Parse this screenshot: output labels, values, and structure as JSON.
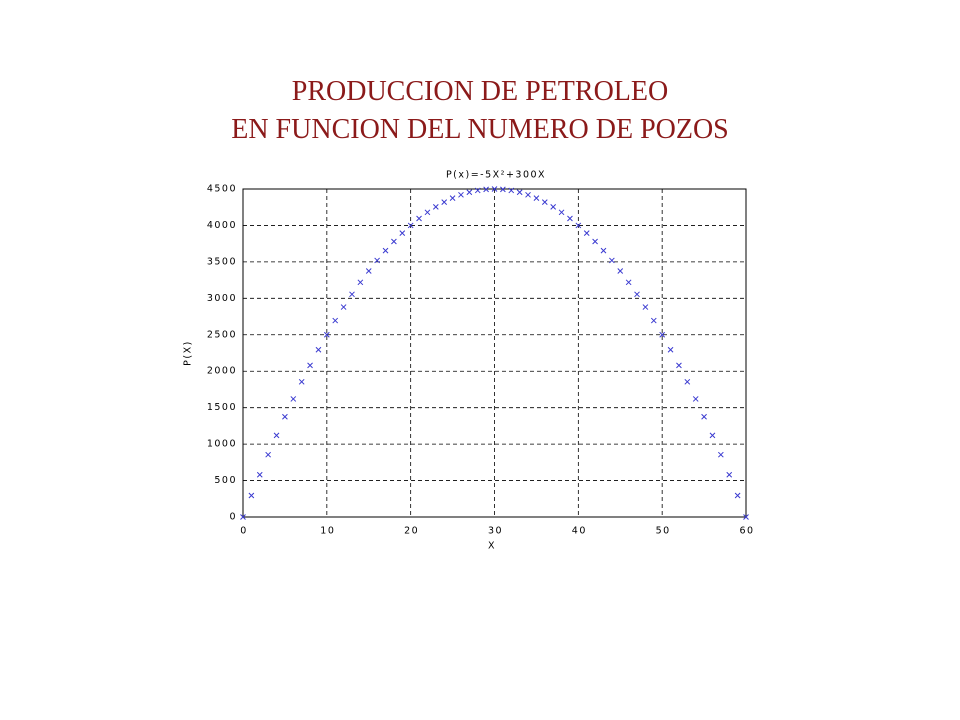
{
  "heading": [
    "PRODUCCION DE PETROLEO",
    "EN FUNCION DEL NUMERO DE POZOS"
  ],
  "chart_data": {
    "type": "scatter",
    "title": "P(x)=-5X²+300X",
    "xlabel": "X",
    "ylabel": "P(X)",
    "marker": "x",
    "color": "#3a3ad0",
    "grid": true,
    "xlim": [
      0,
      60
    ],
    "xticks": [
      0,
      10,
      20,
      30,
      40,
      50,
      60
    ],
    "ylim": [
      0,
      4500
    ],
    "yticks": [
      0,
      500,
      1000,
      1500,
      2000,
      2500,
      3000,
      3500,
      4000,
      4500
    ],
    "x": [
      0,
      1,
      2,
      3,
      4,
      5,
      6,
      7,
      8,
      9,
      10,
      11,
      12,
      13,
      14,
      15,
      16,
      17,
      18,
      19,
      20,
      21,
      22,
      23,
      24,
      25,
      26,
      27,
      28,
      29,
      30,
      31,
      32,
      33,
      34,
      35,
      36,
      37,
      38,
      39,
      40,
      41,
      42,
      43,
      44,
      45,
      46,
      47,
      48,
      49,
      50,
      51,
      52,
      53,
      54,
      55,
      56,
      57,
      58,
      59,
      60
    ],
    "values": [
      0,
      295,
      580,
      855,
      1120,
      1375,
      1620,
      1855,
      2080,
      2295,
      2500,
      2695,
      2880,
      3055,
      3220,
      3375,
      3520,
      3655,
      3780,
      3895,
      4000,
      4095,
      4180,
      4255,
      4320,
      4375,
      4420,
      4455,
      4480,
      4495,
      4500,
      4495,
      4480,
      4455,
      4420,
      4375,
      4320,
      4255,
      4180,
      4095,
      4000,
      3895,
      3780,
      3655,
      3520,
      3375,
      3220,
      3055,
      2880,
      2695,
      2500,
      2295,
      2080,
      1855,
      1620,
      1375,
      1120,
      855,
      580,
      295,
      0
    ]
  }
}
